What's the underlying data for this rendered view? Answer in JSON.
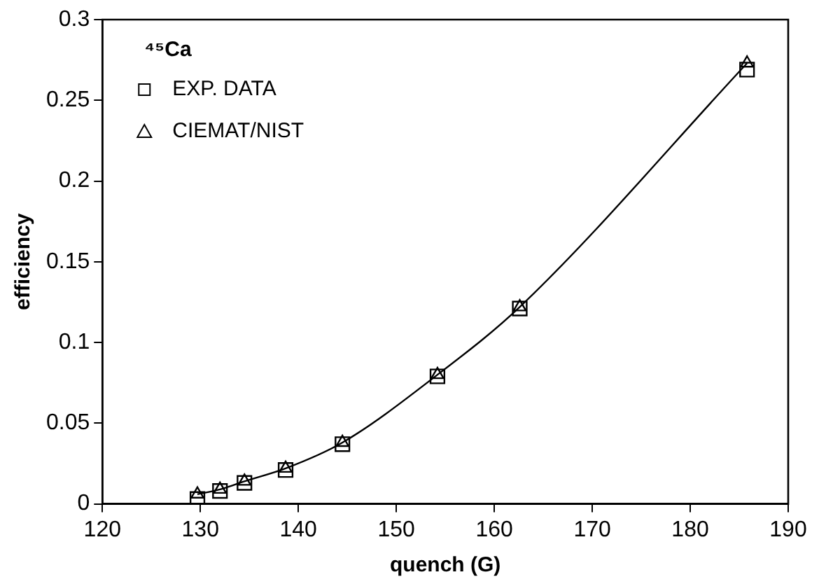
{
  "chart_data": {
    "type": "scatter",
    "xlabel": "quench (G)",
    "ylabel": "efficiency",
    "legend_title": "⁴⁵Ca",
    "legend": "top left",
    "grid": false,
    "xlim": [
      120,
      190
    ],
    "xticks": [
      120,
      130,
      140,
      150,
      160,
      170,
      180,
      190
    ],
    "ylim": [
      0,
      0.3
    ],
    "yticks": [
      0,
      0.05,
      0.1,
      0.15,
      0.2,
      0.25,
      0.3
    ],
    "series": [
      {
        "name": "EXP. DATA",
        "marker": "square",
        "color": "#000000",
        "x": [
          129.7,
          132,
          134.5,
          138.7,
          144.5,
          154.2,
          162.6,
          185.8
        ],
        "values": [
          0.003,
          0.008,
          0.013,
          0.021,
          0.037,
          0.079,
          0.121,
          0.269
        ]
      },
      {
        "name": "CIEMAT/NIST",
        "type": "line",
        "marker": "triangle",
        "line_style": "solid",
        "color": "#000000",
        "x": [
          129.7,
          132,
          134.5,
          138.7,
          144.5,
          154.2,
          162.6,
          185.8
        ],
        "values": [
          0.006,
          0.009,
          0.014,
          0.022,
          0.038,
          0.08,
          0.122,
          0.273
        ]
      }
    ]
  }
}
